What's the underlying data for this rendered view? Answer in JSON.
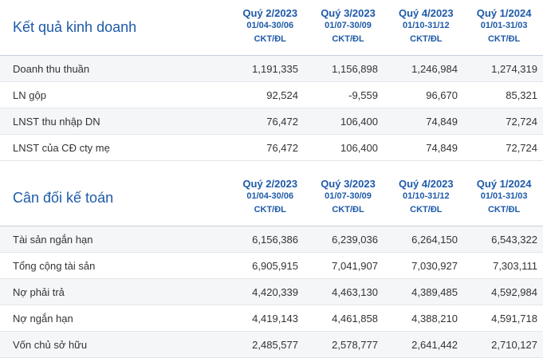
{
  "kqkd": {
    "title": "Kết quả kinh doanh",
    "columns": [
      {
        "quarter": "Quý 2/2023",
        "range": "01/04-30/06",
        "unit": "CKT/ĐL"
      },
      {
        "quarter": "Quý 3/2023",
        "range": "01/07-30/09",
        "unit": "CKT/ĐL"
      },
      {
        "quarter": "Quý 4/2023",
        "range": "01/10-31/12",
        "unit": "CKT/ĐL"
      },
      {
        "quarter": "Quý 1/2024",
        "range": "01/01-31/03",
        "unit": "CKT/ĐL"
      }
    ],
    "rows": [
      {
        "label": "Doanh thu thuần",
        "values": [
          "1,191,335",
          "1,156,898",
          "1,246,984",
          "1,274,319"
        ]
      },
      {
        "label": "LN gộp",
        "values": [
          "92,524",
          "-9,559",
          "96,670",
          "85,321"
        ]
      },
      {
        "label": "LNST thu nhập DN",
        "values": [
          "76,472",
          "106,400",
          "74,849",
          "72,724"
        ]
      },
      {
        "label": "LNST của CĐ cty mẹ",
        "values": [
          "76,472",
          "106,400",
          "74,849",
          "72,724"
        ]
      }
    ]
  },
  "cdkt": {
    "title": "Cân đối kế toán",
    "columns": [
      {
        "quarter": "Quý 2/2023",
        "range": "01/04-30/06",
        "unit": "CKT/ĐL"
      },
      {
        "quarter": "Quý 3/2023",
        "range": "01/07-30/09",
        "unit": "CKT/ĐL"
      },
      {
        "quarter": "Quý 4/2023",
        "range": "01/10-31/12",
        "unit": "CKT/ĐL"
      },
      {
        "quarter": "Quý 1/2024",
        "range": "01/01-31/03",
        "unit": "CKT/ĐL"
      }
    ],
    "rows": [
      {
        "label": "Tài sản ngắn hạn",
        "values": [
          "6,156,386",
          "6,239,036",
          "6,264,150",
          "6,543,322"
        ]
      },
      {
        "label": "Tổng cộng tài sản",
        "values": [
          "6,905,915",
          "7,041,907",
          "7,030,927",
          "7,303,111"
        ]
      },
      {
        "label": "Nợ phải trả",
        "values": [
          "4,420,339",
          "4,463,130",
          "4,389,485",
          "4,592,984"
        ]
      },
      {
        "label": "Nợ ngắn hạn",
        "values": [
          "4,419,143",
          "4,461,858",
          "4,388,210",
          "4,591,718"
        ]
      },
      {
        "label": "Vốn chủ sở hữu",
        "values": [
          "2,485,577",
          "2,578,777",
          "2,641,442",
          "2,710,127"
        ]
      }
    ]
  }
}
